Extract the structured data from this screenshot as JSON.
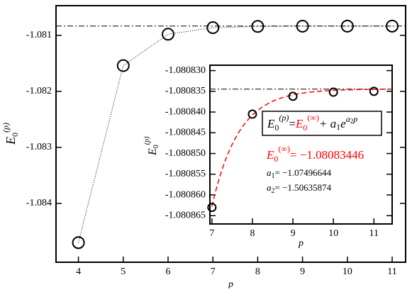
{
  "chart_data": [
    {
      "type": "line",
      "xlabel": "p",
      "ylabel": [
        "E",
        "0",
        "(p)"
      ],
      "x": [
        4,
        5,
        6,
        7,
        8,
        9,
        10,
        11
      ],
      "series": [
        {
          "color": "#000000",
          "values": [
            -1.0847,
            -1.08154,
            -1.08098,
            -1.080863,
            -1.0808405,
            -1.0808362,
            -1.0808352,
            -1.080835
          ]
        }
      ],
      "hline": -1.08083446,
      "xlim": [
        3.5,
        11.3
      ],
      "xticks": [
        4,
        5,
        6,
        7,
        8,
        9,
        10,
        11
      ],
      "ylim": [
        -1.08505,
        -1.08047
      ],
      "yticks": [
        -1.081,
        -1.082,
        -1.083,
        -1.084
      ]
    },
    {
      "type": "scatter",
      "xlabel": "p",
      "ylabel": [
        "E",
        "0",
        "(p)"
      ],
      "x": [
        7,
        8,
        9,
        10,
        11
      ],
      "series": [
        {
          "color": "#000000",
          "values": [
            -1.080863,
            -1.0808405,
            -1.0808362,
            -1.0808352,
            -1.080835
          ]
        }
      ],
      "fit": {
        "color": "#ff0000",
        "e0_inf": -1.08083446,
        "a1": -1.07496644,
        "a2": -1.50635874
      },
      "formula": [
        "E",
        "0",
        "(p)",
        "=",
        "E",
        "0",
        "(∞)",
        "+ a",
        "1",
        "e",
        "a",
        "2",
        "p"
      ],
      "fit_labels": {
        "e0": [
          "E",
          "0",
          "(∞)",
          "= −1.08083446"
        ],
        "a1": [
          "a",
          "1",
          "= −1.07496644"
        ],
        "a2": [
          "a",
          "2",
          "= −1.50635874"
        ]
      },
      "xlim": [
        6.95,
        11.45
      ],
      "xticks": [
        7,
        8,
        9,
        10,
        11
      ],
      "ylim": [
        -1.080867,
        -1.0808287
      ],
      "yticks": [
        {
          "value": -1.08083,
          "label": "-1.080830"
        },
        {
          "value": -1.080835,
          "label": "-1.080835"
        },
        {
          "value": -1.08084,
          "label": "-1.080840"
        },
        {
          "value": -1.080845,
          "label": "-1.080845"
        },
        {
          "value": -1.08085,
          "label": "-1.080850"
        },
        {
          "value": -1.080855,
          "label": "-1.080855"
        },
        {
          "value": -1.08086,
          "label": "-1.080860"
        },
        {
          "value": -1.080865,
          "label": "-1.080865"
        }
      ]
    }
  ]
}
